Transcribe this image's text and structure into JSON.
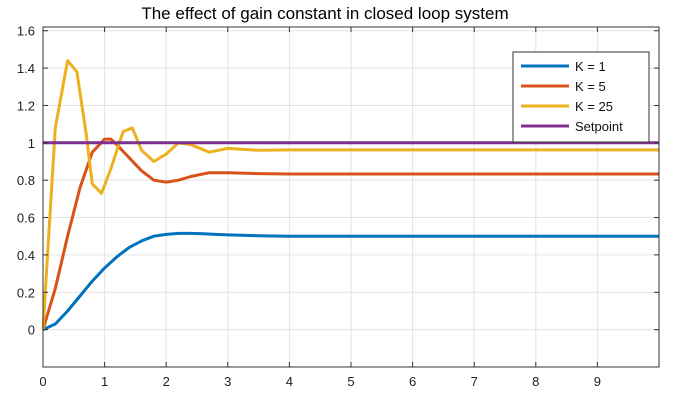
{
  "chart_data": {
    "type": "line",
    "title": "The effect of gain constant in closed loop system",
    "xlabel": "",
    "ylabel": "",
    "xlim": [
      0,
      10
    ],
    "ylim": [
      -0.2,
      1.62
    ],
    "xticks": [
      0,
      1,
      2,
      3,
      4,
      5,
      6,
      7,
      8,
      9
    ],
    "yticks": [
      0,
      0.2,
      0.4,
      0.6,
      0.8,
      1,
      1.2,
      1.4,
      1.6
    ],
    "xtick_labels": [
      "0",
      "1",
      "2",
      "3",
      "4",
      "5",
      "6",
      "7",
      "8",
      "9"
    ],
    "ytick_labels": [
      "0",
      "0.2",
      "0.4",
      "0.6",
      "0.8",
      "1",
      "1.2",
      "1.4",
      "1.6"
    ],
    "grid": true,
    "legend_position": "top-right",
    "series": [
      {
        "name": "K = 1",
        "color": "#0072BD",
        "x": [
          0,
          0.2,
          0.4,
          0.6,
          0.8,
          1.0,
          1.2,
          1.4,
          1.6,
          1.8,
          2.0,
          2.2,
          2.4,
          2.6,
          2.8,
          3.0,
          3.5,
          4.0,
          5.0,
          6.0,
          7.0,
          8.0,
          9.0,
          10.0
        ],
        "y": [
          0,
          0.03,
          0.1,
          0.18,
          0.26,
          0.33,
          0.39,
          0.44,
          0.475,
          0.5,
          0.51,
          0.515,
          0.515,
          0.513,
          0.51,
          0.507,
          0.503,
          0.5,
          0.5,
          0.5,
          0.5,
          0.5,
          0.5,
          0.5
        ]
      },
      {
        "name": "K = 5",
        "color": "#D95319",
        "x": [
          0,
          0.2,
          0.4,
          0.6,
          0.8,
          1.0,
          1.1,
          1.2,
          1.4,
          1.6,
          1.8,
          2.0,
          2.2,
          2.4,
          2.7,
          3.0,
          3.5,
          4.0,
          5.0,
          6.0,
          7.0,
          8.0,
          9.0,
          10.0
        ],
        "y": [
          0,
          0.22,
          0.5,
          0.76,
          0.95,
          1.02,
          1.02,
          0.99,
          0.92,
          0.85,
          0.8,
          0.79,
          0.8,
          0.82,
          0.84,
          0.84,
          0.835,
          0.833,
          0.833,
          0.833,
          0.833,
          0.833,
          0.833,
          0.833
        ]
      },
      {
        "name": "K = 25",
        "color": "#EDB120",
        "x": [
          0,
          0.2,
          0.4,
          0.55,
          0.7,
          0.8,
          0.95,
          1.1,
          1.3,
          1.45,
          1.6,
          1.8,
          2.0,
          2.2,
          2.4,
          2.7,
          3.0,
          3.5,
          4.0,
          5.0,
          6.0,
          7.0,
          8.0,
          9.0,
          10.0
        ],
        "y": [
          0,
          1.08,
          1.44,
          1.38,
          1.05,
          0.78,
          0.73,
          0.86,
          1.06,
          1.08,
          0.96,
          0.9,
          0.94,
          1.0,
          0.99,
          0.95,
          0.97,
          0.96,
          0.962,
          0.962,
          0.962,
          0.962,
          0.962,
          0.962,
          0.962
        ]
      },
      {
        "name": "Setpoint",
        "color": "#7E2F8E",
        "x": [
          0,
          10
        ],
        "y": [
          1,
          1
        ]
      }
    ]
  }
}
